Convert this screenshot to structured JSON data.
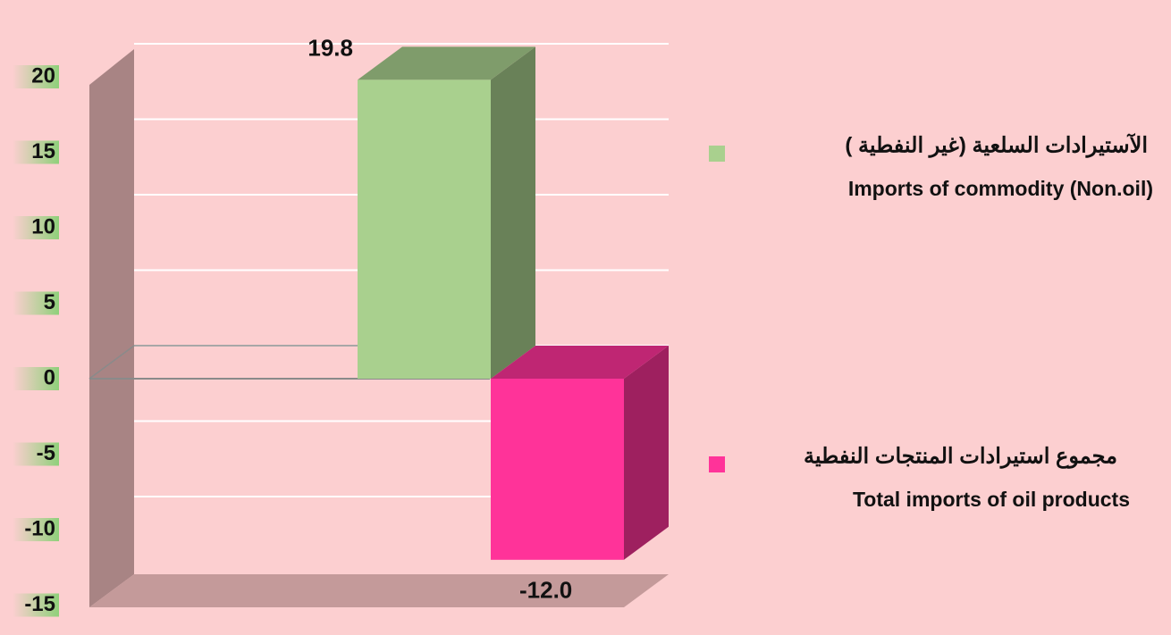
{
  "chart_data": {
    "type": "bar",
    "series": [
      {
        "name": "Imports of commodity (Non.oil)",
        "name_ar": "الآستيرادات السلعية (غير النفطية )",
        "color": "#a9d08e",
        "values": [
          19.8
        ],
        "value_labels": [
          "19.8"
        ]
      },
      {
        "name": "Total imports of oil products",
        "name_ar": "مجموع استيرادات المنتجات النفطية",
        "color": "#ff3399",
        "values": [
          -12
        ],
        "value_labels": [
          "-12.0"
        ]
      }
    ],
    "ylim": [
      -15,
      20
    ],
    "yticks": [
      -15,
      -10,
      -5,
      0,
      5,
      10,
      15,
      20
    ],
    "grid": true,
    "legend": "right"
  }
}
